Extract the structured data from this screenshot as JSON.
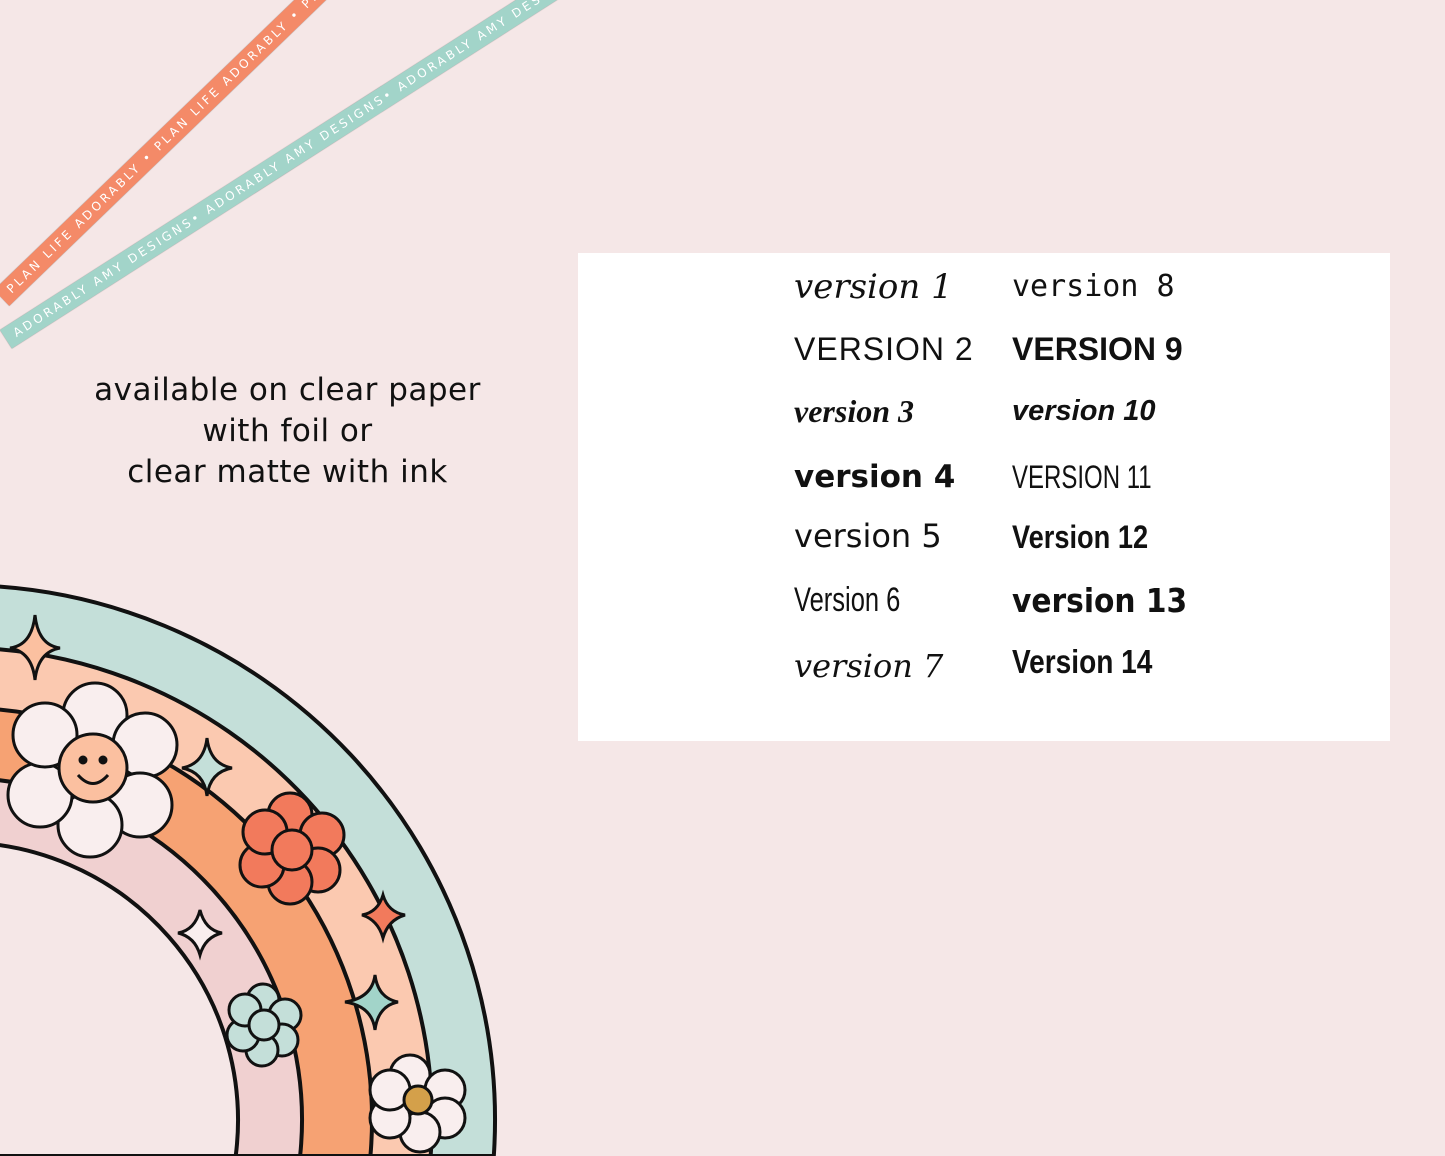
{
  "ribbons": {
    "orange": "PLAN LIFE ADORABLY • PLAN LIFE ADORABLY • PLAN LIFE ADORABLY",
    "teal": "ADORABLY AMY DESIGNS• ADORABLY AMY DESIGNS• ADORABLY AMY DESIGNS•"
  },
  "caption": [
    "available on clear paper",
    "with foil or",
    "clear matte with ink"
  ],
  "versions": [
    "version 1",
    "VERSION 2",
    "version 3",
    "version 4",
    "version 5",
    "Version 6",
    "version 7",
    "version 8",
    "VERSION 9",
    "version 10",
    "VERSION 11",
    "Version 12",
    "version 13",
    "Version 14"
  ],
  "colors": {
    "background": "#f5e7e7",
    "teal": "#c4dfd9",
    "peach": "#fbc9b0",
    "orange": "#f6a273",
    "pink": "#f0d0d0",
    "coral": "#f27a5c"
  }
}
